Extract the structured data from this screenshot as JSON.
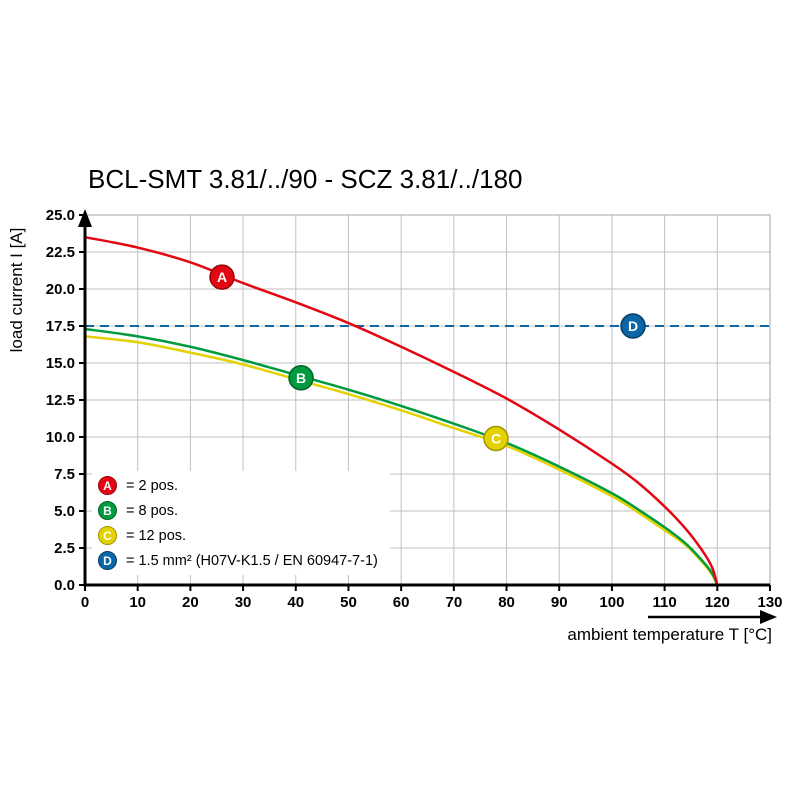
{
  "chart_data": {
    "type": "line",
    "title": "BCL-SMT 3.81/../90 - SCZ 3.81/../180",
    "xlabel": "ambient temperature T [°C]",
    "ylabel": "load current I [A]",
    "xlim": [
      0,
      130
    ],
    "ylim": [
      0,
      25
    ],
    "xticks": [
      0,
      10,
      20,
      30,
      40,
      50,
      60,
      70,
      80,
      90,
      100,
      110,
      120,
      130
    ],
    "yticks": [
      0,
      2.5,
      5,
      7.5,
      10,
      12.5,
      15,
      17.5,
      20,
      22.5,
      25
    ],
    "ytick_labels": [
      "0.0",
      "2.5",
      "5.0",
      "7.5",
      "10.0",
      "12.5",
      "15.0",
      "17.5",
      "20.0",
      "22.5",
      "25.0"
    ],
    "grid": true,
    "legend_position": "lower-left-inside",
    "colors": {
      "grid": "#c0c0c0",
      "frame": "#a3a3a3",
      "axis": "#000000"
    },
    "series": [
      {
        "id": "A",
        "legend": "= 2 pos.",
        "color": "#e30613",
        "edge": "#99040c",
        "marker_x": 26,
        "marker_y": 20.8,
        "points": [
          [
            0,
            23.5
          ],
          [
            10,
            22.8
          ],
          [
            20,
            21.8
          ],
          [
            30,
            20.4
          ],
          [
            40,
            19.1
          ],
          [
            50,
            17.7
          ],
          [
            60,
            16.1
          ],
          [
            70,
            14.4
          ],
          [
            80,
            12.6
          ],
          [
            90,
            10.5
          ],
          [
            100,
            8.2
          ],
          [
            105,
            6.9
          ],
          [
            110,
            5.3
          ],
          [
            114,
            3.8
          ],
          [
            117,
            2.4
          ],
          [
            119,
            1.2
          ],
          [
            120,
            0
          ]
        ]
      },
      {
        "id": "B",
        "legend": "= 8 pos.",
        "color": "#009b3e",
        "edge": "#00652a",
        "marker_x": 41,
        "marker_y": 14.0,
        "points": [
          [
            0,
            17.3
          ],
          [
            10,
            16.8
          ],
          [
            20,
            16.1
          ],
          [
            30,
            15.2
          ],
          [
            40,
            14.2
          ],
          [
            50,
            13.2
          ],
          [
            60,
            12.1
          ],
          [
            70,
            10.9
          ],
          [
            80,
            9.6
          ],
          [
            90,
            8.0
          ],
          [
            100,
            6.2
          ],
          [
            105,
            5.1
          ],
          [
            110,
            3.9
          ],
          [
            114,
            2.8
          ],
          [
            117,
            1.7
          ],
          [
            119,
            0.8
          ],
          [
            120,
            0
          ]
        ]
      },
      {
        "id": "C",
        "legend": "= 12 pos.",
        "color": "#e3d200",
        "edge": "#a39500",
        "marker_x": 78,
        "marker_y": 9.9,
        "points": [
          [
            0,
            16.8
          ],
          [
            10,
            16.4
          ],
          [
            20,
            15.7
          ],
          [
            30,
            14.9
          ],
          [
            40,
            13.9
          ],
          [
            50,
            12.9
          ],
          [
            60,
            11.8
          ],
          [
            70,
            10.6
          ],
          [
            80,
            9.4
          ],
          [
            90,
            7.8
          ],
          [
            100,
            6.0
          ],
          [
            105,
            4.9
          ],
          [
            110,
            3.7
          ],
          [
            114,
            2.7
          ],
          [
            117,
            1.6
          ],
          [
            119,
            0.7
          ],
          [
            120,
            0
          ]
        ]
      },
      {
        "id": "D",
        "legend": "= 1.5 mm² (H07V-K1.5 / EN 60947-7-1)",
        "color": "#0a66a4",
        "edge": "#063f66",
        "type": "hline",
        "y": 17.5,
        "marker_x": 104,
        "marker_y": 17.5
      }
    ]
  }
}
